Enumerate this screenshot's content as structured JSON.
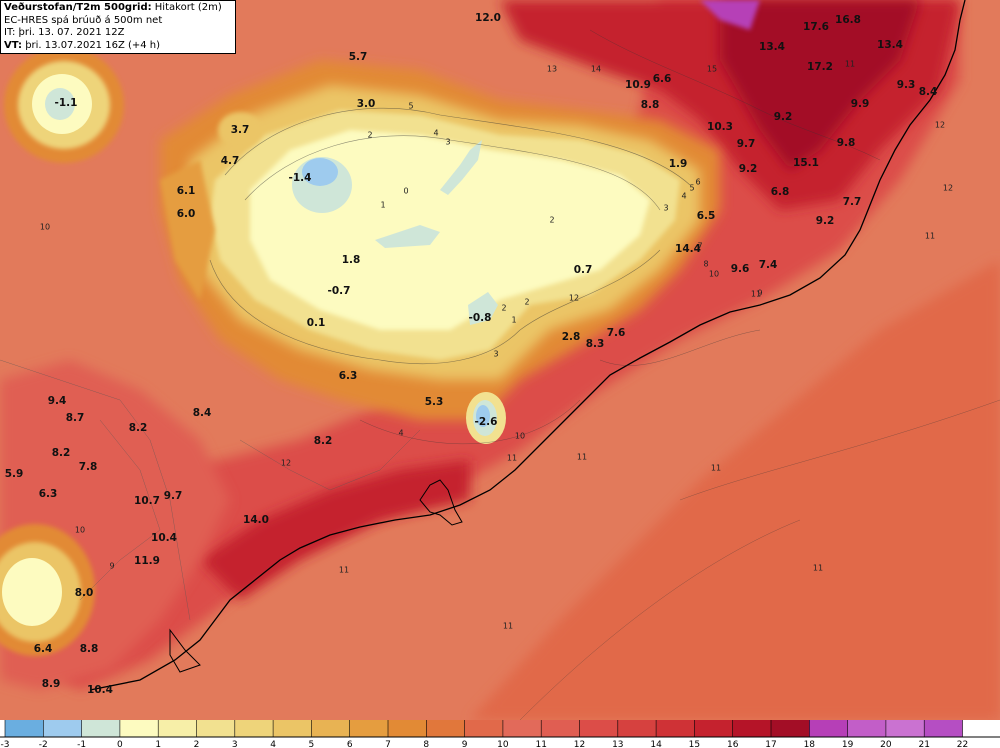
{
  "header": {
    "title_bold": "Veðurstofan/T2m 500grid:",
    "title_rest": " Hitakort (2m)",
    "model_line": "EC-HRES spá brúuð á 500m net",
    "it_line": "IT: þri. 13. 07. 2021 12Z",
    "vt_bold": "VT:",
    "vt_rest": " þri. 13.07.2021 16Z (+4 h)"
  },
  "legend": {
    "ticks": [
      "-3",
      "-2",
      "-1",
      "0",
      "1",
      "2",
      "3",
      "4",
      "5",
      "6",
      "7",
      "8",
      "9",
      "10",
      "11",
      "12",
      "13",
      "14",
      "15",
      "16",
      "17",
      "18",
      "19",
      "20",
      "21",
      "22"
    ],
    "colors": [
      "#6aaee0",
      "#9ecbee",
      "#cfe6d8",
      "#fdfbc0",
      "#f7efa8",
      "#f2e190",
      "#eed47a",
      "#ebc566",
      "#e8b353",
      "#e59d3f",
      "#e28a35",
      "#e1773b",
      "#e1694a",
      "#e26a5a",
      "#e05e52",
      "#dc4d48",
      "#d6413f",
      "#cf3236",
      "#c5222e",
      "#b51428",
      "#a30e26",
      "#b63fb7",
      "#c25ec8",
      "#ca72d1",
      "#b54ec3"
    ]
  },
  "station_labels": [
    {
      "t": "12.0"
    },
    {
      "t": "16.8"
    },
    {
      "t": "17.6"
    },
    {
      "t": "13.4"
    },
    {
      "t": "13.4"
    },
    {
      "t": "5.7"
    },
    {
      "t": "-1.1"
    },
    {
      "t": "3.0"
    },
    {
      "t": "6.6"
    },
    {
      "t": "17.2"
    },
    {
      "t": "10.9"
    },
    {
      "t": "9.3"
    },
    {
      "t": "8.4"
    },
    {
      "t": "8.8"
    },
    {
      "t": "9.9"
    },
    {
      "t": "3.7"
    },
    {
      "t": "10.3"
    },
    {
      "t": "9.2"
    },
    {
      "t": "9.7"
    },
    {
      "t": "9.8"
    },
    {
      "t": "4.7"
    },
    {
      "t": "1.9"
    },
    {
      "t": "15.1"
    },
    {
      "t": "-1.4"
    },
    {
      "t": "9.2"
    },
    {
      "t": "6.1"
    },
    {
      "t": "6.8"
    },
    {
      "t": "7.7"
    },
    {
      "t": "6.0"
    },
    {
      "t": "6.5"
    },
    {
      "t": "9.2"
    },
    {
      "t": "14.4"
    },
    {
      "t": "1.8"
    },
    {
      "t": "9.6"
    },
    {
      "t": "7.4"
    },
    {
      "t": "0.7"
    },
    {
      "t": "-0.7"
    },
    {
      "t": "0.1"
    },
    {
      "t": "-0.8"
    },
    {
      "t": "7.6"
    },
    {
      "t": "2.8"
    },
    {
      "t": "8.3"
    },
    {
      "t": "6.3"
    },
    {
      "t": "9.4"
    },
    {
      "t": "5.3"
    },
    {
      "t": "8.4"
    },
    {
      "t": "8.7"
    },
    {
      "t": "-2.6"
    },
    {
      "t": "8.2"
    },
    {
      "t": "8.2"
    },
    {
      "t": "8.2"
    },
    {
      "t": "7.8"
    },
    {
      "t": "5.9"
    },
    {
      "t": "6.3"
    },
    {
      "t": "10.7"
    },
    {
      "t": "9.7"
    },
    {
      "t": "14.0"
    },
    {
      "t": "10.4"
    },
    {
      "t": "11.9"
    },
    {
      "t": "8.0"
    },
    {
      "t": "6.4"
    },
    {
      "t": "8.8"
    },
    {
      "t": "8.9"
    },
    {
      "t": "10.4"
    }
  ],
  "contour_labels": [
    {
      "t": "13"
    },
    {
      "t": "14"
    },
    {
      "t": "15"
    },
    {
      "t": "5"
    },
    {
      "t": "4"
    },
    {
      "t": "3"
    },
    {
      "t": "2"
    },
    {
      "t": "1"
    },
    {
      "t": "0"
    },
    {
      "t": "2"
    },
    {
      "t": "3"
    },
    {
      "t": "4"
    },
    {
      "t": "5"
    },
    {
      "t": "6"
    },
    {
      "t": "7"
    },
    {
      "t": "8"
    },
    {
      "t": "9"
    },
    {
      "t": "10"
    },
    {
      "t": "11"
    },
    {
      "t": "12"
    },
    {
      "t": "11"
    },
    {
      "t": "11"
    },
    {
      "t": "11"
    },
    {
      "t": "11"
    },
    {
      "t": "12"
    },
    {
      "t": "10"
    },
    {
      "t": "9"
    },
    {
      "t": "2"
    },
    {
      "t": "1"
    },
    {
      "t": "2"
    },
    {
      "t": "3"
    },
    {
      "t": "4"
    },
    {
      "t": "10"
    },
    {
      "t": "11"
    },
    {
      "t": "11"
    },
    {
      "t": "11"
    },
    {
      "t": "12"
    },
    {
      "t": "12"
    },
    {
      "t": "11"
    },
    {
      "t": "10"
    }
  ]
}
